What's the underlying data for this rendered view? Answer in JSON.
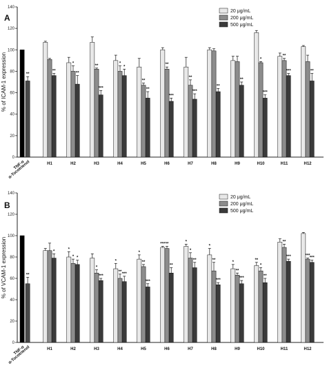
{
  "chart_data": [
    {
      "type": "bar",
      "panel_label": "A",
      "ylabel": "% of ICAM-1 expression",
      "ylim": [
        0,
        140
      ],
      "yticks": [
        0,
        20,
        40,
        60,
        80,
        100,
        120,
        140
      ],
      "control": {
        "labels": [
          "TNF-α",
          "α-Tocotrienol"
        ],
        "values": [
          100,
          71
        ],
        "errors": [
          0,
          4
        ],
        "sig": [
          "",
          "**"
        ],
        "colors": [
          "#000000",
          "#4a4a4a"
        ]
      },
      "categories": [
        "H1",
        "H2",
        "H3",
        "H4",
        "H5",
        "H6",
        "H7",
        "H8",
        "H9",
        "H10",
        "H11",
        "H12"
      ],
      "series": [
        {
          "name": "20 μg/mL",
          "color": "#e8e8e8",
          "values": [
            107,
            88,
            107,
            90,
            84,
            100,
            84,
            100,
            90,
            116,
            94,
            103
          ],
          "errors": [
            1,
            5,
            5,
            5,
            8,
            2,
            9,
            2,
            4,
            2,
            3,
            1
          ],
          "sig": [
            "",
            "",
            "",
            "",
            "",
            "",
            "",
            "",
            "",
            "",
            "",
            ""
          ]
        },
        {
          "name": "200 μg/mL",
          "color": "#8c8c8c",
          "values": [
            91,
            80,
            82,
            80,
            67,
            82,
            67,
            99,
            89,
            88,
            90,
            89
          ],
          "errors": [
            1,
            5,
            1,
            5,
            2,
            2,
            5,
            2,
            5,
            1,
            2,
            6
          ],
          "sig": [
            "",
            "*",
            "**",
            "*",
            "**",
            "**",
            "**",
            "",
            "",
            "*",
            "**",
            ""
          ]
        },
        {
          "name": "500 μg/mL",
          "color": "#3a3a3a",
          "values": [
            76,
            68,
            58,
            76,
            55,
            52,
            54,
            61,
            67,
            55,
            76,
            71
          ],
          "errors": [
            2,
            8,
            4,
            6,
            6,
            3,
            5,
            3,
            3,
            3,
            2,
            7
          ],
          "sig": [
            "**",
            "**",
            "***",
            "*",
            "**",
            "***",
            "***",
            "**",
            "**",
            "***",
            "***",
            "**"
          ]
        }
      ]
    },
    {
      "type": "bar",
      "panel_label": "B",
      "ylabel": "% of VCAM-1 expression",
      "ylim": [
        0,
        140
      ],
      "yticks": [
        0,
        20,
        40,
        60,
        80,
        100,
        120,
        140
      ],
      "control": {
        "labels": [
          "TNF-α",
          "α-Tocotrienol"
        ],
        "values": [
          100,
          55
        ],
        "errors": [
          0,
          6
        ],
        "sig": [
          "",
          "**"
        ],
        "colors": [
          "#000000",
          "#4a4a4a"
        ]
      },
      "categories": [
        "H1",
        "H2",
        "H3",
        "H4",
        "H5",
        "H6",
        "H7",
        "H8",
        "H9",
        "H10",
        "H11",
        "H12"
      ],
      "series": [
        {
          "name": "20 μg/mL",
          "color": "#e8e8e8",
          "values": [
            86,
            80,
            79,
            69,
            78,
            89,
            90,
            82,
            69,
            72,
            94,
            102
          ],
          "errors": [
            2,
            5,
            4,
            5,
            4,
            1,
            2,
            6,
            4,
            3,
            3,
            1
          ],
          "sig": [
            "",
            "*",
            "",
            "*",
            "*",
            "***",
            "*",
            "*",
            "*",
            "**",
            "",
            ""
          ]
        },
        {
          "name": "200 μg/mL",
          "color": "#8c8c8c",
          "values": [
            86,
            74,
            65,
            60,
            71,
            88,
            79,
            67,
            63,
            67,
            89,
            78
          ],
          "errors": [
            7,
            4,
            3,
            4,
            2,
            2,
            5,
            8,
            2,
            3,
            3,
            1
          ],
          "sig": [
            "",
            "*",
            "*",
            "**",
            "**",
            "**",
            "*",
            "**",
            "**",
            "*",
            "**",
            "***"
          ]
        },
        {
          "name": "500 μg/mL",
          "color": "#3a3a3a",
          "values": [
            79,
            73,
            58,
            57,
            52,
            65,
            70,
            54,
            55,
            56,
            76,
            75
          ],
          "errors": [
            4,
            4,
            2,
            5,
            3,
            5,
            5,
            2,
            3,
            4,
            2,
            2
          ],
          "sig": [
            "*",
            "*",
            "***",
            "***",
            "***",
            "**",
            "**",
            "***",
            "***",
            "**",
            "***",
            "***"
          ]
        }
      ]
    }
  ]
}
